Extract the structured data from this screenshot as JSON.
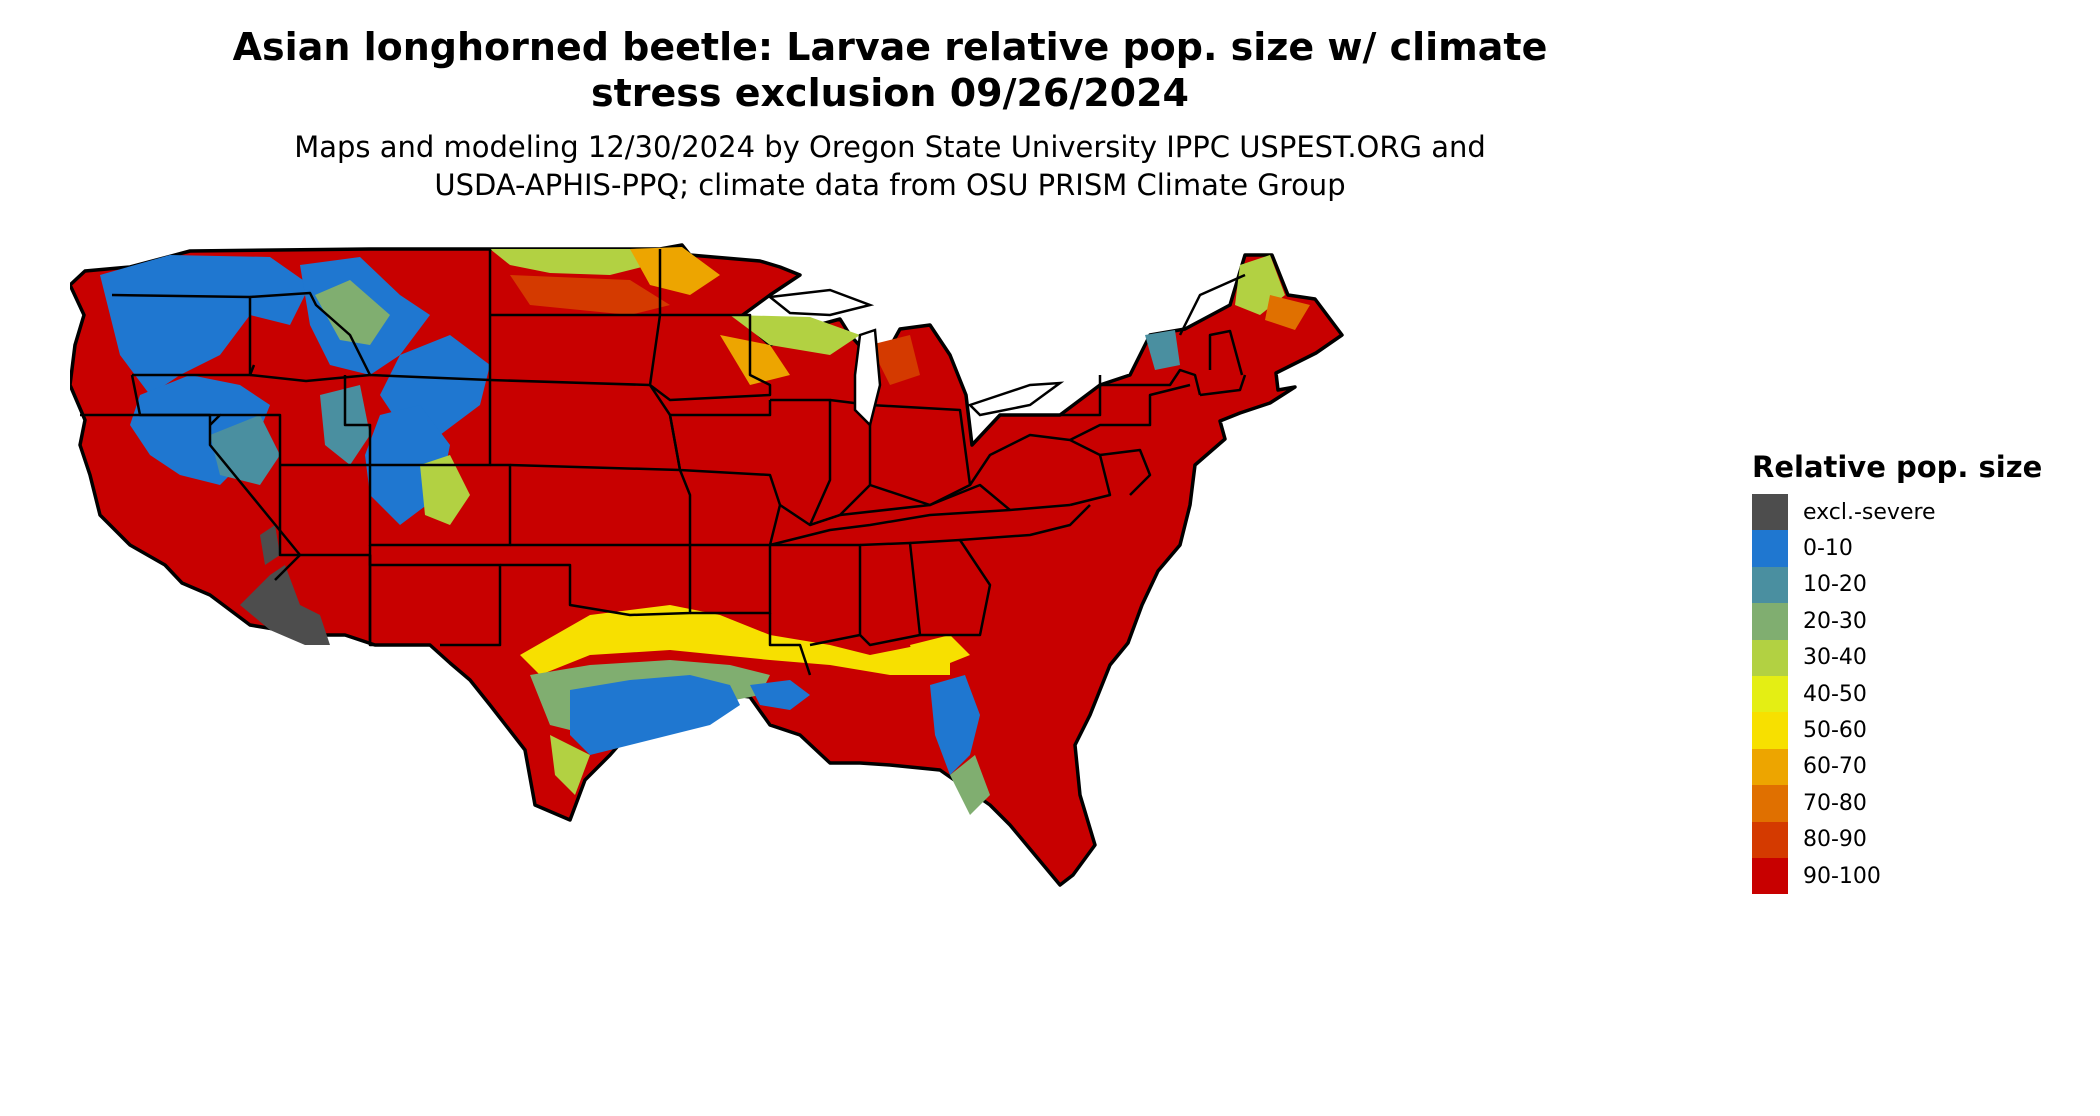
{
  "title": {
    "line1": "Asian longhorned beetle: Larvae relative pop. size w/ climate",
    "line2": "stress exclusion 09/26/2024"
  },
  "subtitle": {
    "line1": "Maps and modeling 12/30/2024 by Oregon State University IPPC USPEST.ORG and",
    "line2": "USDA-APHIS-PPQ; climate data from OSU PRISM Climate Group"
  },
  "legend": {
    "title": "Relative pop. size",
    "items": [
      {
        "label": "excl.-severe",
        "color": "#4d4d4d"
      },
      {
        "label": "0-10",
        "color": "#1f77d0"
      },
      {
        "label": "10-20",
        "color": "#4a8fa0"
      },
      {
        "label": "20-30",
        "color": "#80ae70"
      },
      {
        "label": "30-40",
        "color": "#b2d142"
      },
      {
        "label": "40-50",
        "color": "#e4ee14"
      },
      {
        "label": "50-60",
        "color": "#f7e000"
      },
      {
        "label": "60-70",
        "color": "#eda500"
      },
      {
        "label": "70-80",
        "color": "#e07000"
      },
      {
        "label": "80-90",
        "color": "#d43a00"
      },
      {
        "label": "90-100",
        "color": "#c80000"
      }
    ]
  }
}
